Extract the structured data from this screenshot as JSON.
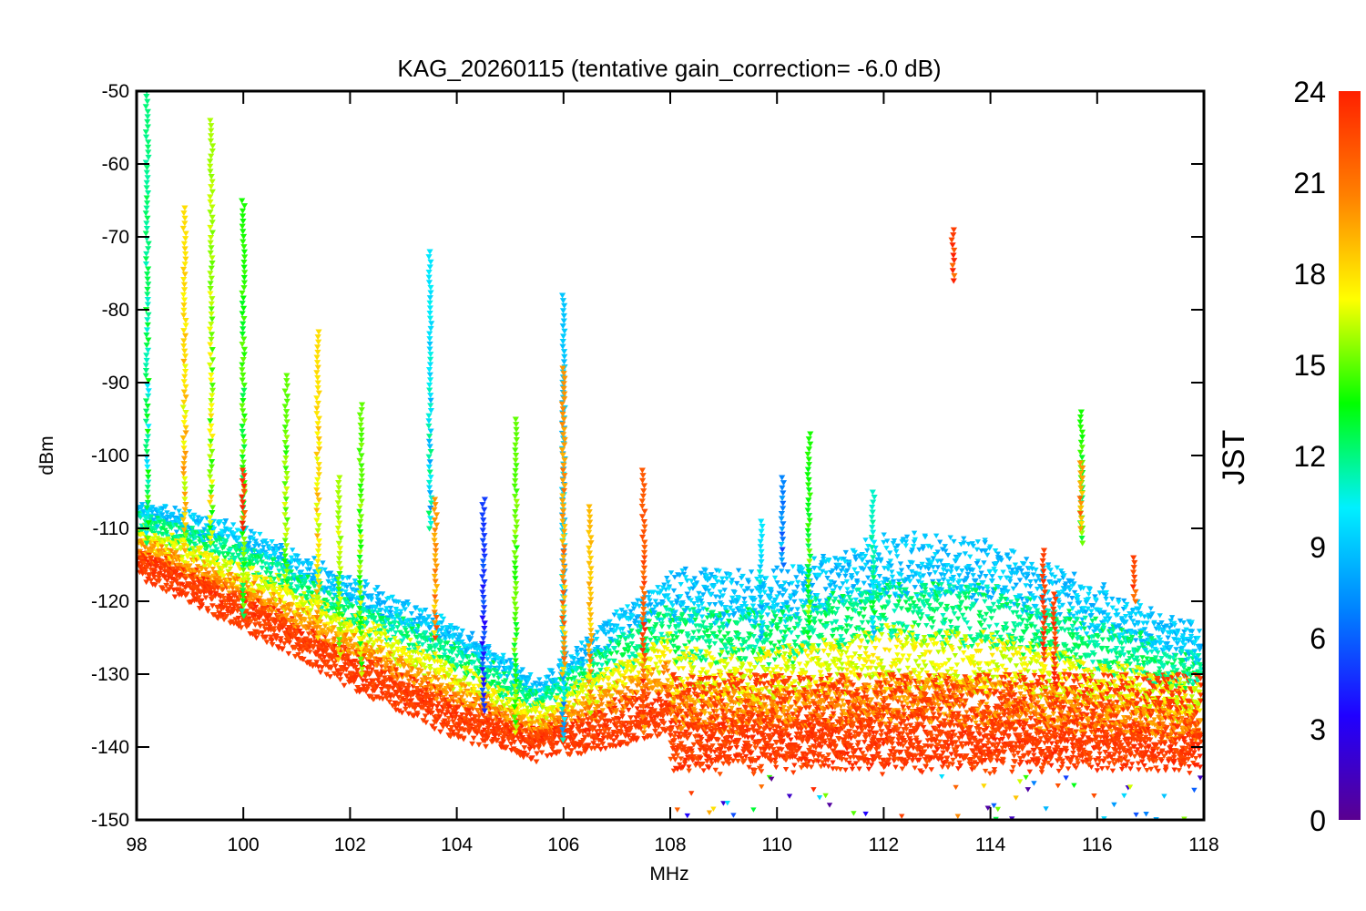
{
  "chart_data": {
    "type": "scatter",
    "title": "KAG_20260115 (tentative gain_correction= -6.0 dB)",
    "xlabel": "MHz",
    "ylabel": "dBm",
    "xlim": [
      98,
      118
    ],
    "ylim": [
      -150,
      -50
    ],
    "xticks": [
      "98",
      "100",
      "102",
      "104",
      "106",
      "108",
      "110",
      "112",
      "114",
      "116",
      "118"
    ],
    "yticks": [
      "-50",
      "-60",
      "-70",
      "-80",
      "-90",
      "-100",
      "-110",
      "-120",
      "-130",
      "-140",
      "-150"
    ],
    "colorbar": {
      "label": "JST",
      "range": [
        0,
        24
      ],
      "ticks": [
        "24",
        "21",
        "18",
        "15",
        "12",
        "9",
        "6",
        "3",
        "0"
      ],
      "colors": [
        "#5a0090",
        "#2000ff",
        "#0080ff",
        "#00f0ff",
        "#00ff00",
        "#ffff00",
        "#ff8000",
        "#ff2000"
      ]
    },
    "noise_floor": [
      {
        "mhz": 98,
        "dbm": -115
      },
      {
        "mhz": 100,
        "dbm": -122
      },
      {
        "mhz": 102,
        "dbm": -130
      },
      {
        "mhz": 104,
        "dbm": -137
      },
      {
        "mhz": 105.5,
        "dbm": -140
      },
      {
        "mhz": 107,
        "dbm": -138
      },
      {
        "mhz": 108,
        "dbm": -136
      },
      {
        "mhz": 110,
        "dbm": -136
      },
      {
        "mhz": 112,
        "dbm": -136
      },
      {
        "mhz": 114,
        "dbm": -136
      },
      {
        "mhz": 116,
        "dbm": -136
      },
      {
        "mhz": 118,
        "dbm": -136
      }
    ],
    "upper_envelope": [
      {
        "mhz": 98,
        "dbm": -106
      },
      {
        "mhz": 100,
        "dbm": -110
      },
      {
        "mhz": 102,
        "dbm": -117
      },
      {
        "mhz": 104,
        "dbm": -123
      },
      {
        "mhz": 105.5,
        "dbm": -131
      },
      {
        "mhz": 107,
        "dbm": -122
      },
      {
        "mhz": 108,
        "dbm": -116
      },
      {
        "mhz": 110,
        "dbm": -116
      },
      {
        "mhz": 112,
        "dbm": -111
      },
      {
        "mhz": 114,
        "dbm": -112
      },
      {
        "mhz": 116,
        "dbm": -118
      },
      {
        "mhz": 118,
        "dbm": -124
      }
    ],
    "peaks": [
      {
        "mhz": 98.2,
        "top": -50,
        "bottom": -112,
        "jst": 12
      },
      {
        "mhz": 98.9,
        "top": -66,
        "bottom": -113,
        "jst": 18
      },
      {
        "mhz": 99.4,
        "top": -54,
        "bottom": -112,
        "jst": 16
      },
      {
        "mhz": 100.0,
        "top": -65,
        "bottom": -122,
        "jst": 14
      },
      {
        "mhz": 100.0,
        "top": -102,
        "bottom": -110,
        "jst": 23
      },
      {
        "mhz": 100.8,
        "top": -89,
        "bottom": -118,
        "jst": 15
      },
      {
        "mhz": 101.4,
        "top": -83,
        "bottom": -125,
        "jst": 18
      },
      {
        "mhz": 101.8,
        "top": -103,
        "bottom": -128,
        "jst": 16
      },
      {
        "mhz": 102.2,
        "top": -93,
        "bottom": -130,
        "jst": 15
      },
      {
        "mhz": 103.5,
        "top": -72,
        "bottom": -110,
        "jst": 10
      },
      {
        "mhz": 103.6,
        "top": -106,
        "bottom": -125,
        "jst": 20
      },
      {
        "mhz": 104.5,
        "top": -106,
        "bottom": -135,
        "jst": 5
      },
      {
        "mhz": 105.1,
        "top": -95,
        "bottom": -138,
        "jst": 15
      },
      {
        "mhz": 106.0,
        "top": -78,
        "bottom": -139,
        "jst": 9
      },
      {
        "mhz": 106.0,
        "top": -88,
        "bottom": -130,
        "jst": 20
      },
      {
        "mhz": 106.5,
        "top": -107,
        "bottom": -136,
        "jst": 19
      },
      {
        "mhz": 107.5,
        "top": -102,
        "bottom": -138,
        "jst": 22
      },
      {
        "mhz": 109.7,
        "top": -109,
        "bottom": -125,
        "jst": 10
      },
      {
        "mhz": 110.1,
        "top": -103,
        "bottom": -115,
        "jst": 7
      },
      {
        "mhz": 110.6,
        "top": -97,
        "bottom": -125,
        "jst": 14
      },
      {
        "mhz": 111.8,
        "top": -105,
        "bottom": -125,
        "jst": 11
      },
      {
        "mhz": 113.3,
        "top": -69,
        "bottom": -76,
        "jst": 23
      },
      {
        "mhz": 115.0,
        "top": -113,
        "bottom": -128,
        "jst": 23
      },
      {
        "mhz": 115.2,
        "top": -119,
        "bottom": -132,
        "jst": 23
      },
      {
        "mhz": 115.7,
        "top": -94,
        "bottom": -112,
        "jst": 14
      },
      {
        "mhz": 115.7,
        "top": -101,
        "bottom": -110,
        "jst": 20
      },
      {
        "mhz": 116.7,
        "top": -114,
        "bottom": -120,
        "jst": 23
      }
    ]
  }
}
